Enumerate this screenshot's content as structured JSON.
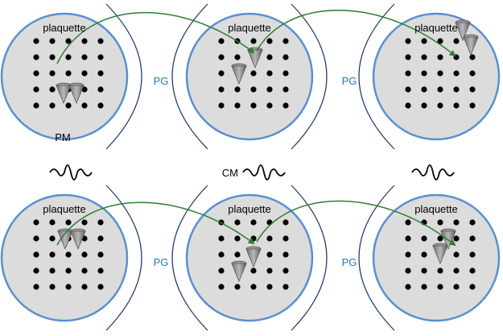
{
  "colors": {
    "plate_fill": "#dcdcdc",
    "plate_stroke": "#5b8fcf",
    "bracket": "#1f3864",
    "dot": "#000000",
    "arrow": "#2e7d32",
    "pg_text": "#2e75b6",
    "cone": "#8c8c8c"
  },
  "rows": [
    {
      "name": "top",
      "plates": [
        {
          "label": "plaquette",
          "cones": [
            [
              1.7,
              3.3
            ],
            [
              2.5,
              3.3
            ]
          ],
          "cone_label": "PM"
        },
        {
          "label": "plaquette",
          "cones": [
            [
              2.1,
              1.1
            ],
            [
              1.1,
              2.1
            ]
          ]
        },
        {
          "label": "plaquette",
          "cones": [
            [
              3.4,
              -0.6
            ],
            [
              3.9,
              0.3
            ]
          ]
        }
      ],
      "gaps": [
        "PG",
        "PG"
      ],
      "arrows": [
        {
          "from_plate": 0,
          "from": [
            1.3,
            1.4
          ],
          "to_plate": 1,
          "to": [
            2.0,
            0.7
          ]
        },
        {
          "from_plate": 1,
          "from": [
            2.2,
            0.6
          ],
          "to_plate": 2,
          "to": [
            2.9,
            0.9
          ]
        }
      ]
    },
    {
      "name": "bottom",
      "plates": [
        {
          "label": "plaquette",
          "cones": [
            [
              1.8,
              1.1
            ],
            [
              2.6,
              1.1
            ]
          ]
        },
        {
          "label": "plaquette",
          "cones": [
            [
              2.0,
              2.2
            ],
            [
              1.1,
              3.1
            ]
          ]
        },
        {
          "label": "plaquette",
          "cones": [
            [
              2.5,
              1.1
            ],
            [
              2.0,
              2.0
            ]
          ]
        }
      ],
      "gaps": [
        "PG",
        "PG"
      ],
      "arrows": [
        {
          "from_plate": 0,
          "from": [
            1.3,
            1.4
          ],
          "to_plate": 1,
          "to": [
            2.0,
            1.3
          ]
        },
        {
          "from_plate": 1,
          "from": [
            2.2,
            1.2
          ],
          "to_plate": 2,
          "to": [
            2.9,
            1.4
          ]
        }
      ]
    }
  ],
  "waves": [
    {
      "label": ""
    },
    {
      "label": "CM"
    },
    {
      "label": ""
    }
  ]
}
